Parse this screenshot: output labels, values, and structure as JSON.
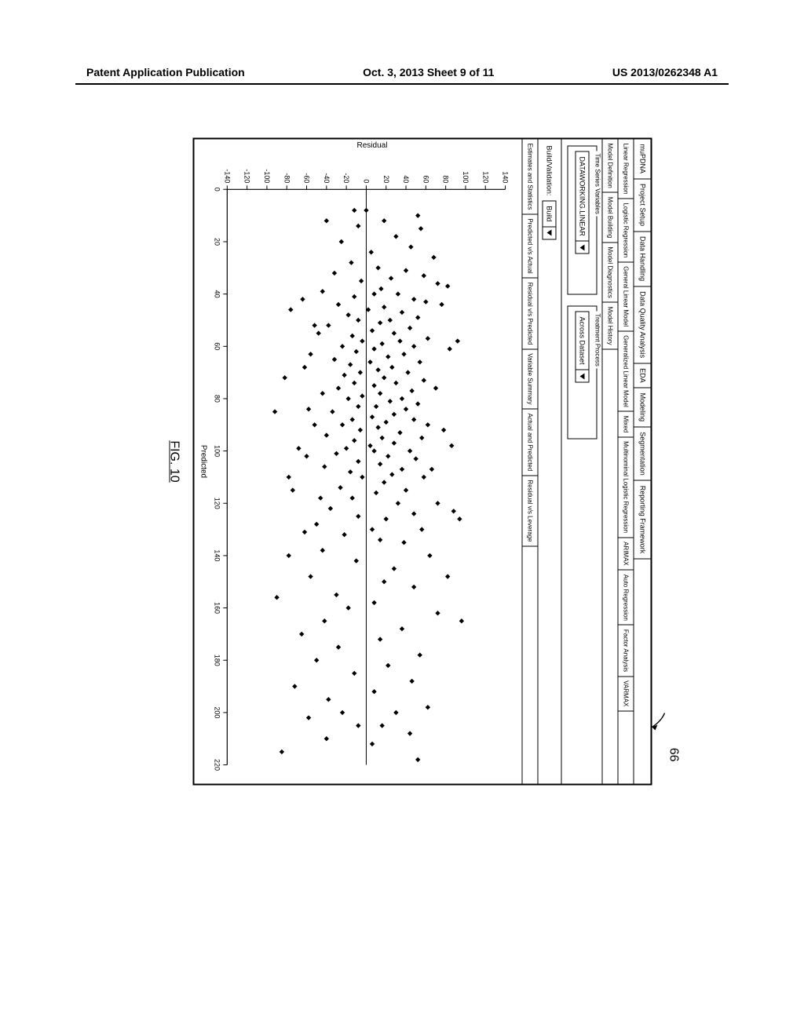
{
  "header": {
    "left": "Patent Application Publication",
    "center": "Oct. 3, 2013  Sheet 9 of 11",
    "right": "US 2013/0262348 A1"
  },
  "callout_label": "66",
  "figure_caption_prefix": "FIG. ",
  "figure_caption_num": "10",
  "top_tabs": [
    "muPDNA",
    "Project Setup",
    "Data Handling",
    "Data Quality Analysis",
    "EDA",
    "Modeling",
    "Segmentation",
    "Reporting Framework"
  ],
  "model_tabs": [
    "Linear Regression",
    "Logistic Regression",
    "General Linear Model",
    "Generalized Linear Model",
    "Mixed",
    "Multinominal Logistic Regression",
    "ARIMAX",
    "Auto Regression",
    "Factor Analysis",
    "VARMAX"
  ],
  "section_tabs": [
    "Model Definition",
    "Model Building",
    "Model Diagnostics",
    "Model History"
  ],
  "fieldset1": {
    "legend": "Time Series Variables",
    "value": "DATAWORKING.LINEAR"
  },
  "fieldset2": {
    "legend": "Treatment Process",
    "value": "Across Dataset"
  },
  "bv_label": "Build/Validation:",
  "bv_value": "Build",
  "analysis_tabs": [
    "Estimates and Statistics",
    "Predicted v/s Actual",
    "Residual v/s Predicted",
    "Variable Summary",
    "Actual and Predicted",
    "Residual v/s Leverage"
  ],
  "chart": {
    "type": "scatter",
    "xlabel": "Predicted",
    "ylabel": "Residual",
    "xlim": [
      0,
      220
    ],
    "ylim": [
      -140,
      140
    ],
    "xtick_step": 20,
    "ytick_step": 20,
    "marker_color": "#000000",
    "marker_size": 3.2,
    "marker_shape": "diamond",
    "axis_color": "#000000",
    "background_color": "#ffffff",
    "tick_fontsize": 9,
    "label_fontsize": 10,
    "zero_line": true,
    "data": [
      [
        8,
        -12
      ],
      [
        10,
        52
      ],
      [
        12,
        18
      ],
      [
        14,
        -8
      ],
      [
        18,
        30
      ],
      [
        20,
        -25
      ],
      [
        22,
        45
      ],
      [
        24,
        5
      ],
      [
        26,
        68
      ],
      [
        28,
        -15
      ],
      [
        30,
        12
      ],
      [
        31,
        40
      ],
      [
        32,
        -32
      ],
      [
        33,
        58
      ],
      [
        34,
        25
      ],
      [
        35,
        -5
      ],
      [
        36,
        72
      ],
      [
        38,
        15
      ],
      [
        39,
        -44
      ],
      [
        40,
        8
      ],
      [
        40,
        32
      ],
      [
        41,
        -12
      ],
      [
        42,
        48
      ],
      [
        43,
        60
      ],
      [
        44,
        -28
      ],
      [
        45,
        18
      ],
      [
        46,
        2
      ],
      [
        47,
        36
      ],
      [
        48,
        -18
      ],
      [
        49,
        52
      ],
      [
        50,
        -8
      ],
      [
        50,
        24
      ],
      [
        51,
        14
      ],
      [
        52,
        -38
      ],
      [
        53,
        44
      ],
      [
        54,
        6
      ],
      [
        55,
        28
      ],
      [
        56,
        -14
      ],
      [
        57,
        62
      ],
      [
        58,
        -4
      ],
      [
        58,
        34
      ],
      [
        59,
        16
      ],
      [
        60,
        -24
      ],
      [
        60,
        48
      ],
      [
        61,
        8
      ],
      [
        62,
        -10
      ],
      [
        63,
        38
      ],
      [
        64,
        22
      ],
      [
        65,
        -32
      ],
      [
        66,
        54
      ],
      [
        66,
        4
      ],
      [
        67,
        -16
      ],
      [
        68,
        26
      ],
      [
        69,
        12
      ],
      [
        70,
        -6
      ],
      [
        70,
        42
      ],
      [
        71,
        -22
      ],
      [
        72,
        18
      ],
      [
        73,
        58
      ],
      [
        74,
        -12
      ],
      [
        74,
        30
      ],
      [
        75,
        8
      ],
      [
        76,
        -28
      ],
      [
        77,
        46
      ],
      [
        78,
        14
      ],
      [
        79,
        -4
      ],
      [
        80,
        36
      ],
      [
        80,
        -18
      ],
      [
        81,
        24
      ],
      [
        82,
        52
      ],
      [
        83,
        -8
      ],
      [
        83,
        10
      ],
      [
        84,
        40
      ],
      [
        85,
        -34
      ],
      [
        86,
        28
      ],
      [
        87,
        6
      ],
      [
        88,
        -14
      ],
      [
        88,
        48
      ],
      [
        89,
        20
      ],
      [
        90,
        -24
      ],
      [
        90,
        62
      ],
      [
        91,
        12
      ],
      [
        92,
        -6
      ],
      [
        93,
        34
      ],
      [
        94,
        -40
      ],
      [
        95,
        16
      ],
      [
        95,
        56
      ],
      [
        96,
        -12
      ],
      [
        97,
        28
      ],
      [
        98,
        4
      ],
      [
        99,
        -20
      ],
      [
        100,
        44
      ],
      [
        100,
        8
      ],
      [
        101,
        -30
      ],
      [
        102,
        22
      ],
      [
        103,
        50
      ],
      [
        104,
        -8
      ],
      [
        105,
        14
      ],
      [
        106,
        -42
      ],
      [
        107,
        36
      ],
      [
        108,
        -16
      ],
      [
        109,
        26
      ],
      [
        110,
        58
      ],
      [
        110,
        -4
      ],
      [
        112,
        18
      ],
      [
        114,
        -26
      ],
      [
        115,
        40
      ],
      [
        116,
        10
      ],
      [
        118,
        -14
      ],
      [
        120,
        32
      ],
      [
        120,
        72
      ],
      [
        122,
        -36
      ],
      [
        124,
        48
      ],
      [
        125,
        -8
      ],
      [
        126,
        20
      ],
      [
        128,
        -50
      ],
      [
        130,
        56
      ],
      [
        130,
        6
      ],
      [
        132,
        -22
      ],
      [
        134,
        14
      ],
      [
        135,
        38
      ],
      [
        138,
        -44
      ],
      [
        140,
        64
      ],
      [
        142,
        -10
      ],
      [
        145,
        28
      ],
      [
        148,
        -56
      ],
      [
        150,
        18
      ],
      [
        152,
        48
      ],
      [
        155,
        -30
      ],
      [
        158,
        8
      ],
      [
        160,
        -18
      ],
      [
        162,
        72
      ],
      [
        165,
        -42
      ],
      [
        168,
        36
      ],
      [
        170,
        -65
      ],
      [
        172,
        14
      ],
      [
        175,
        -28
      ],
      [
        178,
        54
      ],
      [
        180,
        -50
      ],
      [
        182,
        22
      ],
      [
        185,
        -12
      ],
      [
        188,
        46
      ],
      [
        190,
        -72
      ],
      [
        192,
        8
      ],
      [
        195,
        -38
      ],
      [
        198,
        62
      ],
      [
        200,
        -24
      ],
      [
        200,
        30
      ],
      [
        202,
        -58
      ],
      [
        205,
        16
      ],
      [
        205,
        -8
      ],
      [
        208,
        44
      ],
      [
        210,
        -40
      ],
      [
        212,
        6
      ],
      [
        215,
        -85
      ],
      [
        218,
        52
      ],
      [
        37,
        82
      ],
      [
        44,
        76
      ],
      [
        52,
        -52
      ],
      [
        61,
        84
      ],
      [
        68,
        -62
      ],
      [
        76,
        70
      ],
      [
        84,
        -58
      ],
      [
        92,
        78
      ],
      [
        99,
        -68
      ],
      [
        107,
        66
      ],
      [
        115,
        -74
      ],
      [
        123,
        88
      ],
      [
        131,
        -62
      ],
      [
        140,
        -78
      ],
      [
        148,
        82
      ],
      [
        156,
        -90
      ],
      [
        165,
        96
      ],
      [
        46,
        -76
      ],
      [
        58,
        92
      ],
      [
        72,
        -82
      ],
      [
        85,
        -92
      ],
      [
        98,
        86
      ],
      [
        110,
        -78
      ],
      [
        126,
        94
      ],
      [
        8,
        0
      ],
      [
        12,
        -40
      ],
      [
        15,
        55
      ],
      [
        42,
        -64
      ],
      [
        55,
        -48
      ],
      [
        63,
        -56
      ],
      [
        78,
        -44
      ],
      [
        90,
        -52
      ],
      [
        102,
        -60
      ],
      [
        118,
        -46
      ]
    ]
  }
}
